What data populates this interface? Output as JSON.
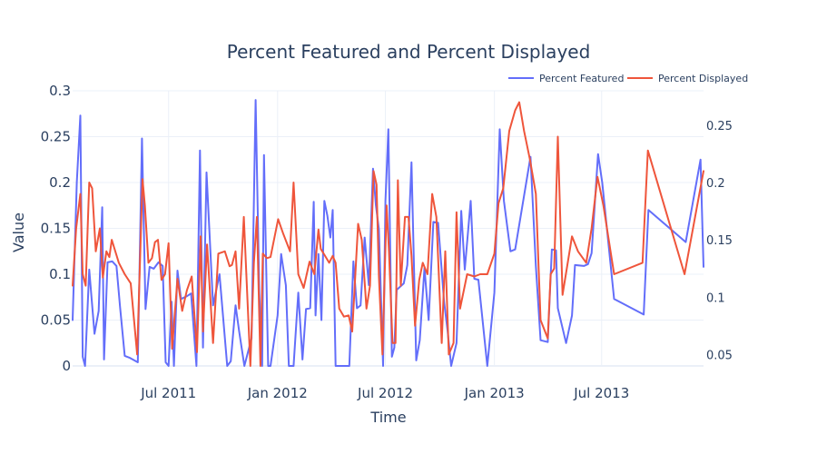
{
  "chart_data": {
    "type": "line",
    "title": "Percent Featured and Percent Displayed",
    "xlabel": "Time",
    "ylabel": "Value",
    "x_ticks": [
      "Jul 2011",
      "Jan 2012",
      "Jul 2012",
      "Jan 2013",
      "Jul 2013"
    ],
    "y_left_ticks": [
      "0",
      "0.05",
      "0.1",
      "0.15",
      "0.2",
      "0.25",
      "0.3"
    ],
    "y_right_ticks": [
      "0.05",
      "0.1",
      "0.15",
      "0.2",
      "0.25"
    ],
    "y_left_range": [
      0,
      0.3
    ],
    "y_right_range": [
      0.04,
      0.28
    ],
    "x_range": [
      "2011-01-20",
      "2013-12-20"
    ],
    "legend_position": "top-right",
    "grid": true,
    "series": [
      {
        "name": "Percent Featured",
        "axis": "left",
        "color": "#636efa",
        "points": [
          [
            "2011-01-20",
            0.05
          ],
          [
            "2011-01-27",
            0.2
          ],
          [
            "2011-02-02",
            0.273
          ],
          [
            "2011-02-06",
            0.01
          ],
          [
            "2011-02-10",
            0.0
          ],
          [
            "2011-02-17",
            0.105
          ],
          [
            "2011-02-26",
            0.035
          ],
          [
            "2011-03-05",
            0.06
          ],
          [
            "2011-03-11",
            0.173
          ],
          [
            "2011-03-14",
            0.007
          ],
          [
            "2011-03-20",
            0.113
          ],
          [
            "2011-03-28",
            0.114
          ],
          [
            "2011-04-04",
            0.109
          ],
          [
            "2011-04-10",
            0.065
          ],
          [
            "2011-04-18",
            0.011
          ],
          [
            "2011-04-26",
            0.009
          ],
          [
            "2011-05-10",
            0.004
          ],
          [
            "2011-05-17",
            0.248
          ],
          [
            "2011-05-23",
            0.062
          ],
          [
            "2011-05-30",
            0.108
          ],
          [
            "2011-06-06",
            0.106
          ],
          [
            "2011-06-14",
            0.113
          ],
          [
            "2011-06-21",
            0.109
          ],
          [
            "2011-06-26",
            0.004
          ],
          [
            "2011-07-01",
            0.0
          ],
          [
            "2011-07-06",
            0.07
          ],
          [
            "2011-07-10",
            0.0
          ],
          [
            "2011-07-16",
            0.104
          ],
          [
            "2011-07-22",
            0.073
          ],
          [
            "2011-08-01",
            0.076
          ],
          [
            "2011-08-08",
            0.079
          ],
          [
            "2011-08-17",
            0.0
          ],
          [
            "2011-08-23",
            0.235
          ],
          [
            "2011-08-28",
            0.02
          ],
          [
            "2011-09-03",
            0.211
          ],
          [
            "2011-09-14",
            0.066
          ],
          [
            "2011-09-25",
            0.1
          ],
          [
            "2011-10-08",
            0.0
          ],
          [
            "2011-10-14",
            0.005
          ],
          [
            "2011-10-22",
            0.066
          ],
          [
            "2011-10-28",
            0.038
          ],
          [
            "2011-11-06",
            0.0
          ],
          [
            "2011-11-18",
            0.03
          ],
          [
            "2011-11-25",
            0.29
          ],
          [
            "2011-12-01",
            0.08
          ],
          [
            "2011-12-06",
            0.0
          ],
          [
            "2011-12-09",
            0.23
          ],
          [
            "2011-12-16",
            0.0
          ],
          [
            "2011-12-20",
            0.0
          ],
          [
            "2012-01-01",
            0.055
          ],
          [
            "2012-01-07",
            0.122
          ],
          [
            "2012-01-15",
            0.088
          ],
          [
            "2012-01-20",
            0.0
          ],
          [
            "2012-01-28",
            0.0
          ],
          [
            "2012-02-05",
            0.08
          ],
          [
            "2012-02-12",
            0.007
          ],
          [
            "2012-02-18",
            0.062
          ],
          [
            "2012-02-25",
            0.063
          ],
          [
            "2012-03-02",
            0.179
          ],
          [
            "2012-03-05",
            0.055
          ],
          [
            "2012-03-10",
            0.122
          ],
          [
            "2012-03-15",
            0.05
          ],
          [
            "2012-03-20",
            0.18
          ],
          [
            "2012-03-25",
            0.164
          ],
          [
            "2012-03-30",
            0.14
          ],
          [
            "2012-04-03",
            0.17
          ],
          [
            "2012-04-08",
            0.0
          ],
          [
            "2012-04-20",
            0.0
          ],
          [
            "2012-05-01",
            0.0
          ],
          [
            "2012-05-08",
            0.114
          ],
          [
            "2012-05-14",
            0.063
          ],
          [
            "2012-05-20",
            0.066
          ],
          [
            "2012-05-27",
            0.14
          ],
          [
            "2012-06-03",
            0.088
          ],
          [
            "2012-06-10",
            0.215
          ],
          [
            "2012-06-15",
            0.175
          ],
          [
            "2012-06-20",
            0.149
          ],
          [
            "2012-06-27",
            0.0
          ],
          [
            "2012-07-01",
            0.18
          ],
          [
            "2012-07-06",
            0.258
          ],
          [
            "2012-07-12",
            0.01
          ],
          [
            "2012-07-16",
            0.02
          ],
          [
            "2012-07-20",
            0.083
          ],
          [
            "2012-07-27",
            0.087
          ],
          [
            "2012-08-01",
            0.09
          ],
          [
            "2012-08-07",
            0.11
          ],
          [
            "2012-08-14",
            0.222
          ],
          [
            "2012-08-22",
            0.006
          ],
          [
            "2012-08-28",
            0.028
          ],
          [
            "2012-09-05",
            0.107
          ],
          [
            "2012-09-12",
            0.05
          ],
          [
            "2012-09-20",
            0.157
          ],
          [
            "2012-09-28",
            0.156
          ],
          [
            "2012-10-08",
            0.07
          ],
          [
            "2012-10-14",
            0.038
          ],
          [
            "2012-10-20",
            0.0
          ],
          [
            "2012-10-29",
            0.025
          ],
          [
            "2012-11-06",
            0.169
          ],
          [
            "2012-11-12",
            0.105
          ],
          [
            "2012-11-22",
            0.18
          ],
          [
            "2012-11-28",
            0.095
          ],
          [
            "2012-12-05",
            0.094
          ],
          [
            "2012-12-20",
            0.0
          ],
          [
            "2013-01-01",
            0.08
          ],
          [
            "2013-01-10",
            0.258
          ],
          [
            "2013-01-17",
            0.18
          ],
          [
            "2013-01-28",
            0.125
          ],
          [
            "2013-02-05",
            0.127
          ],
          [
            "2013-03-03",
            0.228
          ],
          [
            "2013-03-12",
            0.109
          ],
          [
            "2013-03-20",
            0.028
          ],
          [
            "2013-04-01",
            0.026
          ],
          [
            "2013-04-08",
            0.127
          ],
          [
            "2013-04-15",
            0.126
          ],
          [
            "2013-04-18",
            0.063
          ],
          [
            "2013-05-02",
            0.025
          ],
          [
            "2013-05-12",
            0.055
          ],
          [
            "2013-05-17",
            0.11
          ],
          [
            "2013-06-01",
            0.109
          ],
          [
            "2013-06-08",
            0.111
          ],
          [
            "2013-06-14",
            0.123
          ],
          [
            "2013-06-25",
            0.231
          ],
          [
            "2013-07-02",
            0.2
          ],
          [
            "2013-07-22",
            0.073
          ],
          [
            "2013-09-10",
            0.056
          ],
          [
            "2013-09-18",
            0.17
          ],
          [
            "2013-11-20",
            0.135
          ],
          [
            "2013-12-15",
            0.225
          ],
          [
            "2013-12-20",
            0.108
          ]
        ]
      },
      {
        "name": "Percent Displayed",
        "axis": "right",
        "color": "#ef553b",
        "points": [
          [
            "2011-01-20",
            0.11
          ],
          [
            "2011-01-26",
            0.16
          ],
          [
            "2011-02-02",
            0.19
          ],
          [
            "2011-02-06",
            0.12
          ],
          [
            "2011-02-11",
            0.11
          ],
          [
            "2011-02-17",
            0.2
          ],
          [
            "2011-02-22",
            0.195
          ],
          [
            "2011-02-28",
            0.14
          ],
          [
            "2011-03-07",
            0.16
          ],
          [
            "2011-03-12",
            0.117
          ],
          [
            "2011-03-18",
            0.14
          ],
          [
            "2011-03-23",
            0.135
          ],
          [
            "2011-03-27",
            0.15
          ],
          [
            "2011-04-08",
            0.13
          ],
          [
            "2011-04-18",
            0.12
          ],
          [
            "2011-04-28",
            0.112
          ],
          [
            "2011-05-09",
            0.05
          ],
          [
            "2011-05-18",
            0.203
          ],
          [
            "2011-05-22",
            0.18
          ],
          [
            "2011-05-28",
            0.13
          ],
          [
            "2011-06-03",
            0.134
          ],
          [
            "2011-06-08",
            0.148
          ],
          [
            "2011-06-13",
            0.15
          ],
          [
            "2011-06-19",
            0.115
          ],
          [
            "2011-06-25",
            0.12
          ],
          [
            "2011-07-01",
            0.147
          ],
          [
            "2011-07-07",
            0.055
          ],
          [
            "2011-07-16",
            0.116
          ],
          [
            "2011-07-24",
            0.088
          ],
          [
            "2011-08-01",
            0.106
          ],
          [
            "2011-08-09",
            0.118
          ],
          [
            "2011-08-18",
            0.052
          ],
          [
            "2011-08-24",
            0.153
          ],
          [
            "2011-08-28",
            0.07
          ],
          [
            "2011-09-04",
            0.146
          ],
          [
            "2011-09-14",
            0.06
          ],
          [
            "2011-09-23",
            0.138
          ],
          [
            "2011-10-04",
            0.14
          ],
          [
            "2011-10-12",
            0.127
          ],
          [
            "2011-10-16",
            0.128
          ],
          [
            "2011-10-22",
            0.14
          ],
          [
            "2011-10-28",
            0.09
          ],
          [
            "2011-11-05",
            0.17
          ],
          [
            "2011-11-16",
            0.04
          ],
          [
            "2011-11-22",
            0.13
          ],
          [
            "2011-11-27",
            0.17
          ],
          [
            "2011-12-03",
            0.04
          ],
          [
            "2011-12-07",
            0.138
          ],
          [
            "2011-12-14",
            0.134
          ],
          [
            "2011-12-20",
            0.135
          ],
          [
            "2012-01-02",
            0.168
          ],
          [
            "2012-01-10",
            0.156
          ],
          [
            "2012-01-22",
            0.14
          ],
          [
            "2012-01-28",
            0.2
          ],
          [
            "2012-02-05",
            0.12
          ],
          [
            "2012-02-14",
            0.108
          ],
          [
            "2012-02-24",
            0.131
          ],
          [
            "2012-03-03",
            0.12
          ],
          [
            "2012-03-10",
            0.159
          ],
          [
            "2012-03-14",
            0.142
          ],
          [
            "2012-03-20",
            0.137
          ],
          [
            "2012-03-28",
            0.13
          ],
          [
            "2012-04-03",
            0.136
          ],
          [
            "2012-04-08",
            0.13
          ],
          [
            "2012-04-14",
            0.09
          ],
          [
            "2012-04-22",
            0.083
          ],
          [
            "2012-04-30",
            0.084
          ],
          [
            "2012-05-06",
            0.07
          ],
          [
            "2012-05-16",
            0.164
          ],
          [
            "2012-05-22",
            0.15
          ],
          [
            "2012-05-30",
            0.09
          ],
          [
            "2012-06-05",
            0.11
          ],
          [
            "2012-06-11",
            0.21
          ],
          [
            "2012-06-16",
            0.198
          ],
          [
            "2012-06-20",
            0.118
          ],
          [
            "2012-06-26",
            0.05
          ],
          [
            "2012-07-03",
            0.18
          ],
          [
            "2012-07-07",
            0.14
          ],
          [
            "2012-07-13",
            0.06
          ],
          [
            "2012-07-18",
            0.06
          ],
          [
            "2012-07-22",
            0.202
          ],
          [
            "2012-07-27",
            0.11
          ],
          [
            "2012-08-03",
            0.17
          ],
          [
            "2012-08-09",
            0.17
          ],
          [
            "2012-08-14",
            0.136
          ],
          [
            "2012-08-20",
            0.075
          ],
          [
            "2012-08-27",
            0.115
          ],
          [
            "2012-09-02",
            0.13
          ],
          [
            "2012-09-10",
            0.12
          ],
          [
            "2012-09-18",
            0.19
          ],
          [
            "2012-09-25",
            0.17
          ],
          [
            "2012-10-04",
            0.06
          ],
          [
            "2012-10-10",
            0.14
          ],
          [
            "2012-10-16",
            0.05
          ],
          [
            "2012-10-24",
            0.06
          ],
          [
            "2012-10-29",
            0.174
          ],
          [
            "2012-11-04",
            0.09
          ],
          [
            "2012-11-16",
            0.12
          ],
          [
            "2012-11-28",
            0.118
          ],
          [
            "2012-12-08",
            0.12
          ],
          [
            "2012-12-20",
            0.12
          ],
          [
            "2013-01-01",
            0.138
          ],
          [
            "2013-01-08",
            0.182
          ],
          [
            "2013-01-16",
            0.195
          ],
          [
            "2013-01-26",
            0.245
          ],
          [
            "2013-02-05",
            0.263
          ],
          [
            "2013-02-12",
            0.27
          ],
          [
            "2013-02-20",
            0.245
          ],
          [
            "2013-03-02",
            0.22
          ],
          [
            "2013-03-12",
            0.19
          ],
          [
            "2013-03-20",
            0.08
          ],
          [
            "2013-04-01",
            0.064
          ],
          [
            "2013-04-06",
            0.12
          ],
          [
            "2013-04-12",
            0.125
          ],
          [
            "2013-04-18",
            0.24
          ],
          [
            "2013-04-26",
            0.102
          ],
          [
            "2013-05-12",
            0.153
          ],
          [
            "2013-05-22",
            0.14
          ],
          [
            "2013-06-05",
            0.13
          ],
          [
            "2013-06-14",
            0.16
          ],
          [
            "2013-06-24",
            0.205
          ],
          [
            "2013-07-04",
            0.18
          ],
          [
            "2013-07-22",
            0.12
          ],
          [
            "2013-09-08",
            0.13
          ],
          [
            "2013-09-17",
            0.228
          ],
          [
            "2013-11-18",
            0.12
          ],
          [
            "2013-12-20",
            0.21
          ]
        ]
      }
    ]
  }
}
